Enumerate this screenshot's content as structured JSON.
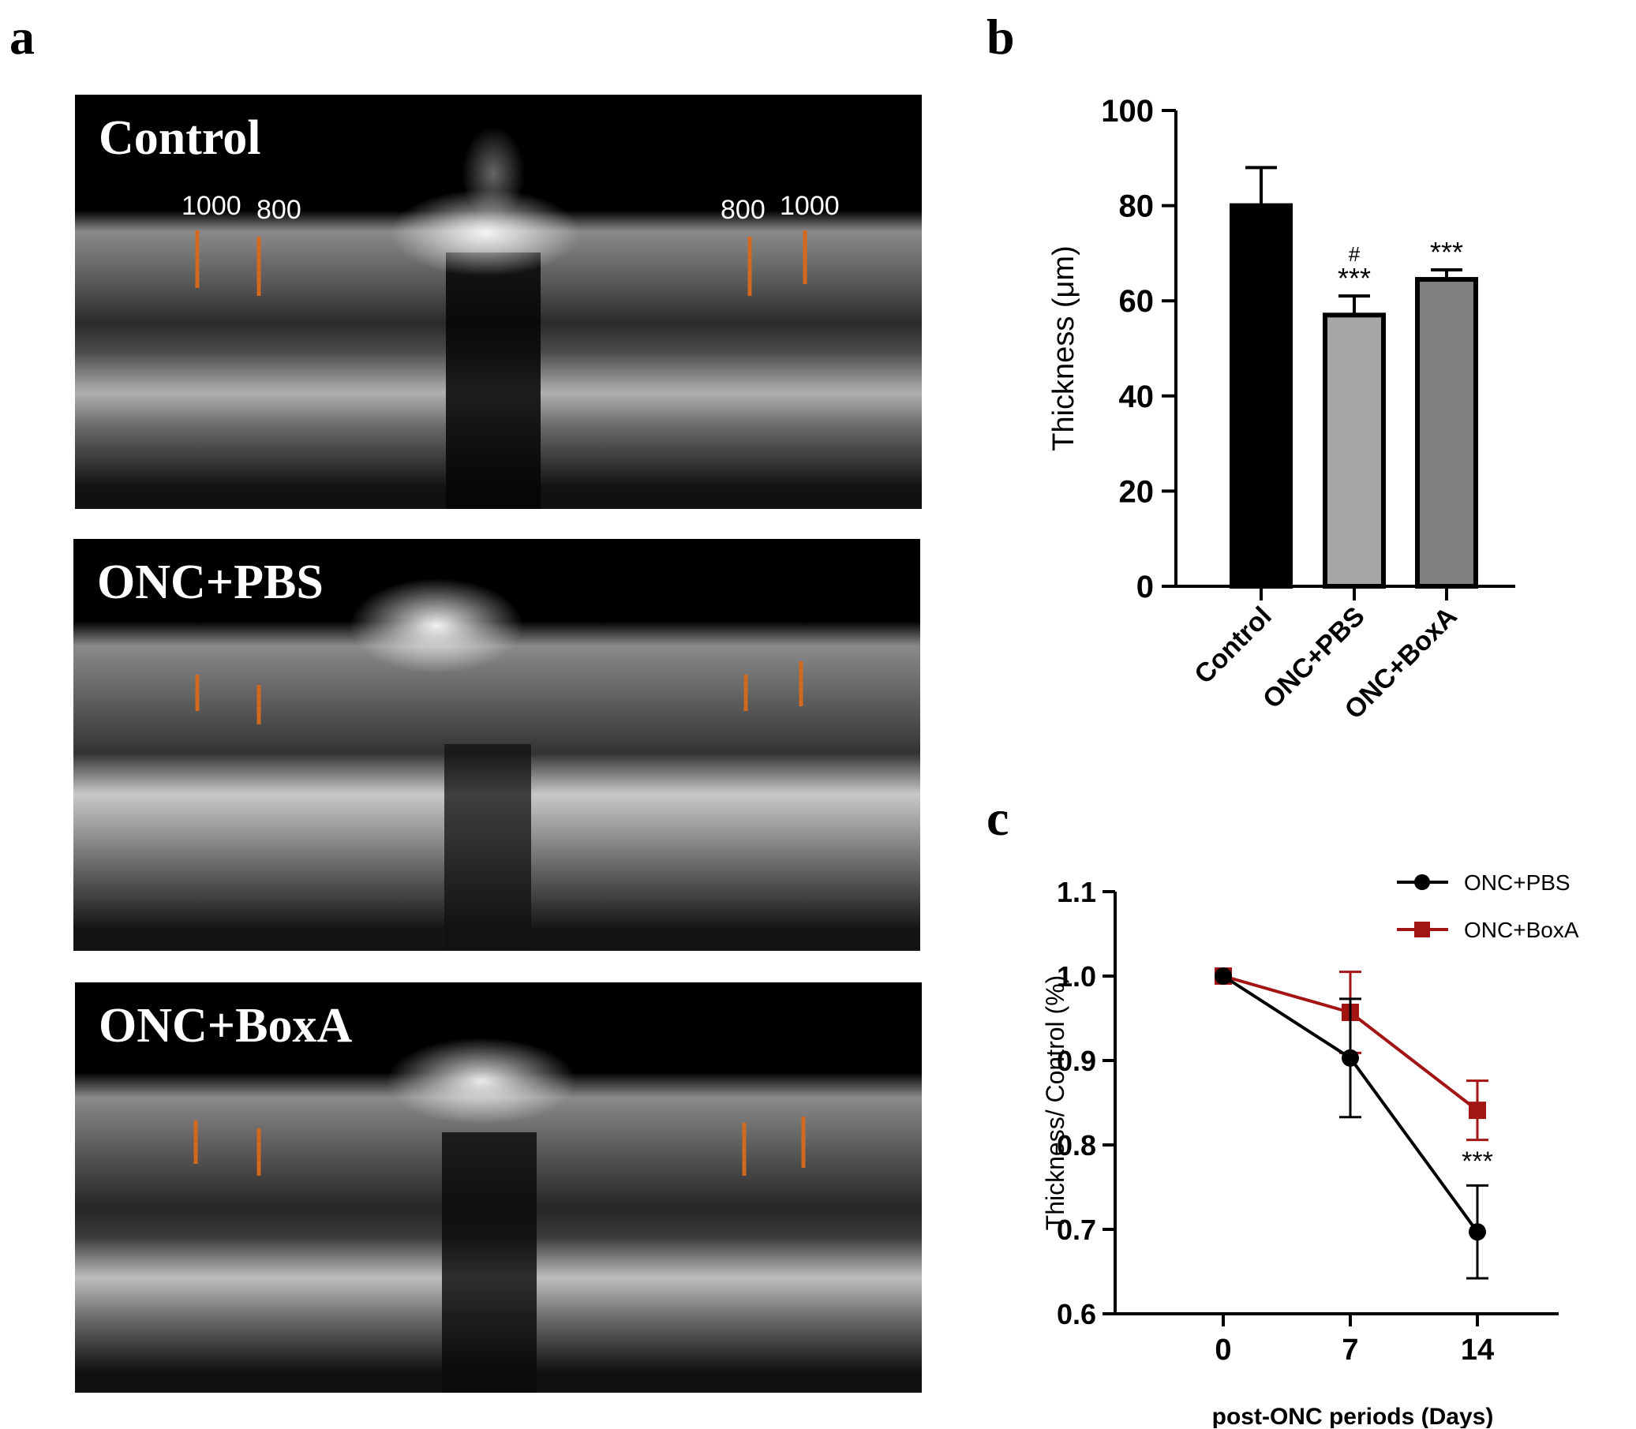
{
  "panels": {
    "a": "a",
    "b": "b",
    "c": "c"
  },
  "oct_images": [
    {
      "label": "Control",
      "markers": [
        "1000",
        "800",
        "800",
        "1000"
      ]
    },
    {
      "label": "ONC+PBS",
      "markers": []
    },
    {
      "label": "ONC+BoxA",
      "markers": []
    }
  ],
  "colors": {
    "bar_control": "#000000",
    "bar_pbs": "#a6a6a6",
    "bar_boxa": "#808080",
    "line_pbs": "#000000",
    "line_boxa": "#a31515",
    "marker_lines": "#d2691e"
  },
  "chart_data": [
    {
      "type": "bar",
      "title": "",
      "ylabel": "Thickness (μm)",
      "categories": [
        "Control",
        "ONC+PBS",
        "ONC+BoxA"
      ],
      "values": [
        80,
        57,
        64.5
      ],
      "errors": [
        8,
        4,
        2
      ],
      "annotations": [
        "",
        "#\n***",
        "***"
      ],
      "ylim": [
        0,
        100
      ],
      "yticks": [
        "0",
        "20",
        "40",
        "60",
        "80",
        "100"
      ]
    },
    {
      "type": "line",
      "title": "",
      "xlabel": "post-ONC periods (Days)",
      "ylabel": "Thickness/ Control (%)",
      "x": [
        0,
        7,
        14
      ],
      "xticks": [
        "0",
        "7",
        "14"
      ],
      "ylim": [
        0.6,
        1.1
      ],
      "yticks": [
        "0.6",
        "0.7",
        "0.8",
        "0.9",
        "1.0",
        "1.1"
      ],
      "legend_position": "top-right",
      "series": [
        {
          "name": "ONC+PBS",
          "values": [
            1.0,
            0.903,
            0.697
          ],
          "errors": [
            0,
            0.07,
            0.055
          ],
          "marker": "circle"
        },
        {
          "name": "ONC+BoxA",
          "values": [
            1.0,
            0.957,
            0.841
          ],
          "errors": [
            0,
            0.048,
            0.035
          ],
          "marker": "square"
        }
      ],
      "annotations": [
        {
          "x": 14,
          "text": "***"
        }
      ]
    }
  ]
}
